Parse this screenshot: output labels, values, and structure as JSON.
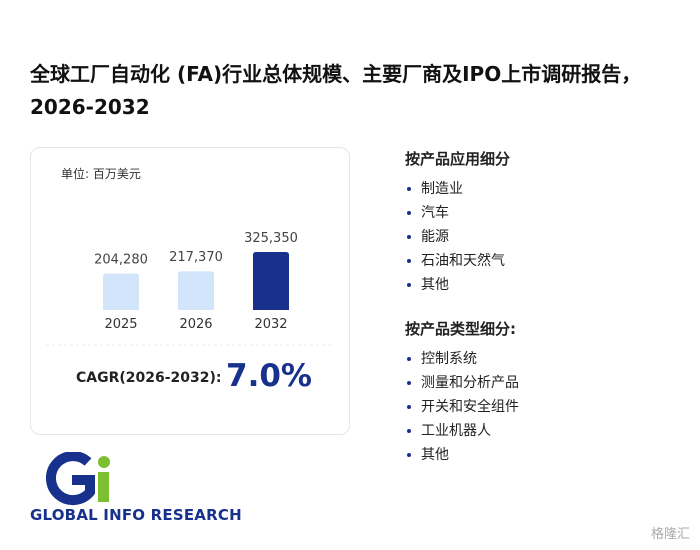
{
  "header": {
    "title": "全球工厂自动化 (FA)行业总体规模、主要厂商及IPO上市调研报告，2026-2032"
  },
  "chart_data": {
    "type": "bar",
    "unit": "单位: 百万美元",
    "categories": [
      "2025",
      "2026",
      "2032"
    ],
    "values": [
      204280,
      217370,
      325350
    ],
    "value_labels": [
      "204,280",
      "217,370",
      "325,350"
    ],
    "colors": [
      "#d3e5fa",
      "#d3e5fa",
      "#17318c"
    ],
    "cagr_label": "CAGR(2026-2032):",
    "cagr_value": "7.0%"
  },
  "segments": [
    {
      "title": "按产品应用细分",
      "items": [
        "制造业",
        "汽车",
        "能源",
        "石油和天然气",
        "其他"
      ]
    },
    {
      "title": "按产品类型细分:",
      "items": [
        "控制系统",
        "测量和分析产品",
        "开关和安全组件",
        "工业机器人",
        "其他"
      ]
    }
  ],
  "logo": {
    "text": "GLOBAL INFO RESEARCH"
  },
  "footer": {
    "source": "格隆汇"
  }
}
